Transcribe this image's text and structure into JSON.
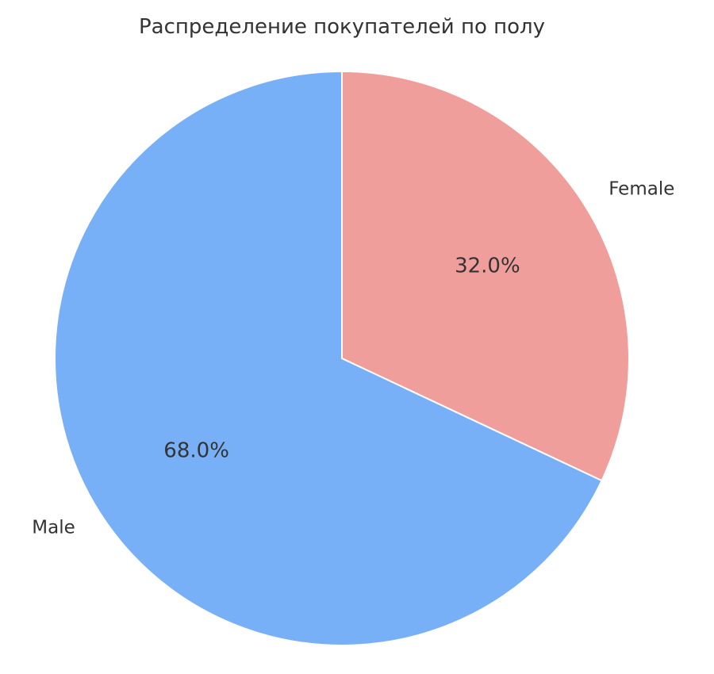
{
  "chart_data": {
    "type": "pie",
    "title": "Распределение покупателей по полу",
    "slices": [
      {
        "label": "Female",
        "value": 32.0,
        "pct_text": "32.0%",
        "color": "#f09e9c"
      },
      {
        "label": "Male",
        "value": 68.0,
        "pct_text": "68.0%",
        "color": "#78b0f8"
      }
    ],
    "start_angle_deg": 90,
    "direction": "clockwise",
    "edge_color": "#ffffff"
  }
}
